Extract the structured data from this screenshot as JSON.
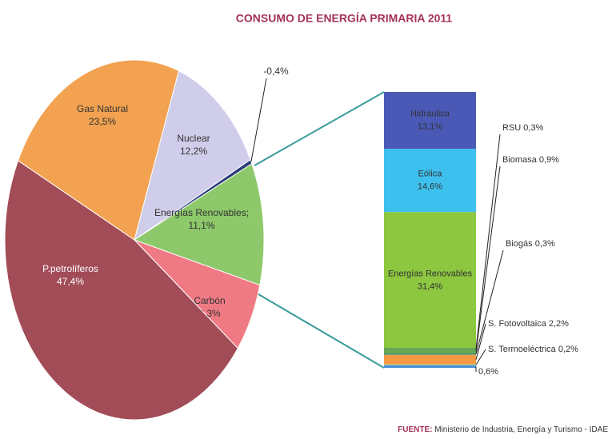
{
  "title": "CONSUMO DE ENERGÍA PRIMARIA 2011",
  "source": {
    "label": "FUENTE:",
    "text": "Ministerio de Industria, Energía y Turismo - IDAE"
  },
  "chart_data": [
    {
      "type": "pie",
      "categories": [
        "Nuclear",
        null,
        "Energías Renovables;",
        "Carbón",
        "P.petrolíferos",
        "Gas Natural"
      ],
      "values": [
        12.2,
        -0.4,
        11.1,
        6.3,
        47.4,
        23.5
      ],
      "value_labels": [
        "12,2%",
        "-0,4%",
        "11,1%",
        "6,3%",
        "47,4%",
        "23,5%"
      ],
      "colors": [
        "#cfcdea",
        "#2c3e7a",
        "#8dc86a",
        "#f07a84",
        "#a24c58",
        "#f2a250"
      ]
    },
    {
      "type": "stacked-bar",
      "categories": [
        "Hidráulica",
        "Eólica",
        "Energías Renovables",
        "RSU",
        "Biomasa",
        "Biogás",
        "S. Fotovoltaica",
        "S. Termoeléctrica",
        null
      ],
      "values": [
        13.1,
        14.6,
        31.4,
        0.3,
        0.9,
        0.3,
        2.2,
        0.2,
        0.6
      ],
      "value_labels": [
        "13,1%",
        "14,6%",
        "31,4%",
        "0,3%",
        "0,9%",
        "0,3%",
        "2,2%",
        "0,2%",
        "0,6%"
      ],
      "colors": [
        "#4b59b6",
        "#3ec0ee",
        "#8dc63f",
        "#3f8f5a",
        "#6aa84f",
        "#2f8f7a",
        "#f59a42",
        "#a5d47e",
        "#4a90d9"
      ]
    }
  ]
}
